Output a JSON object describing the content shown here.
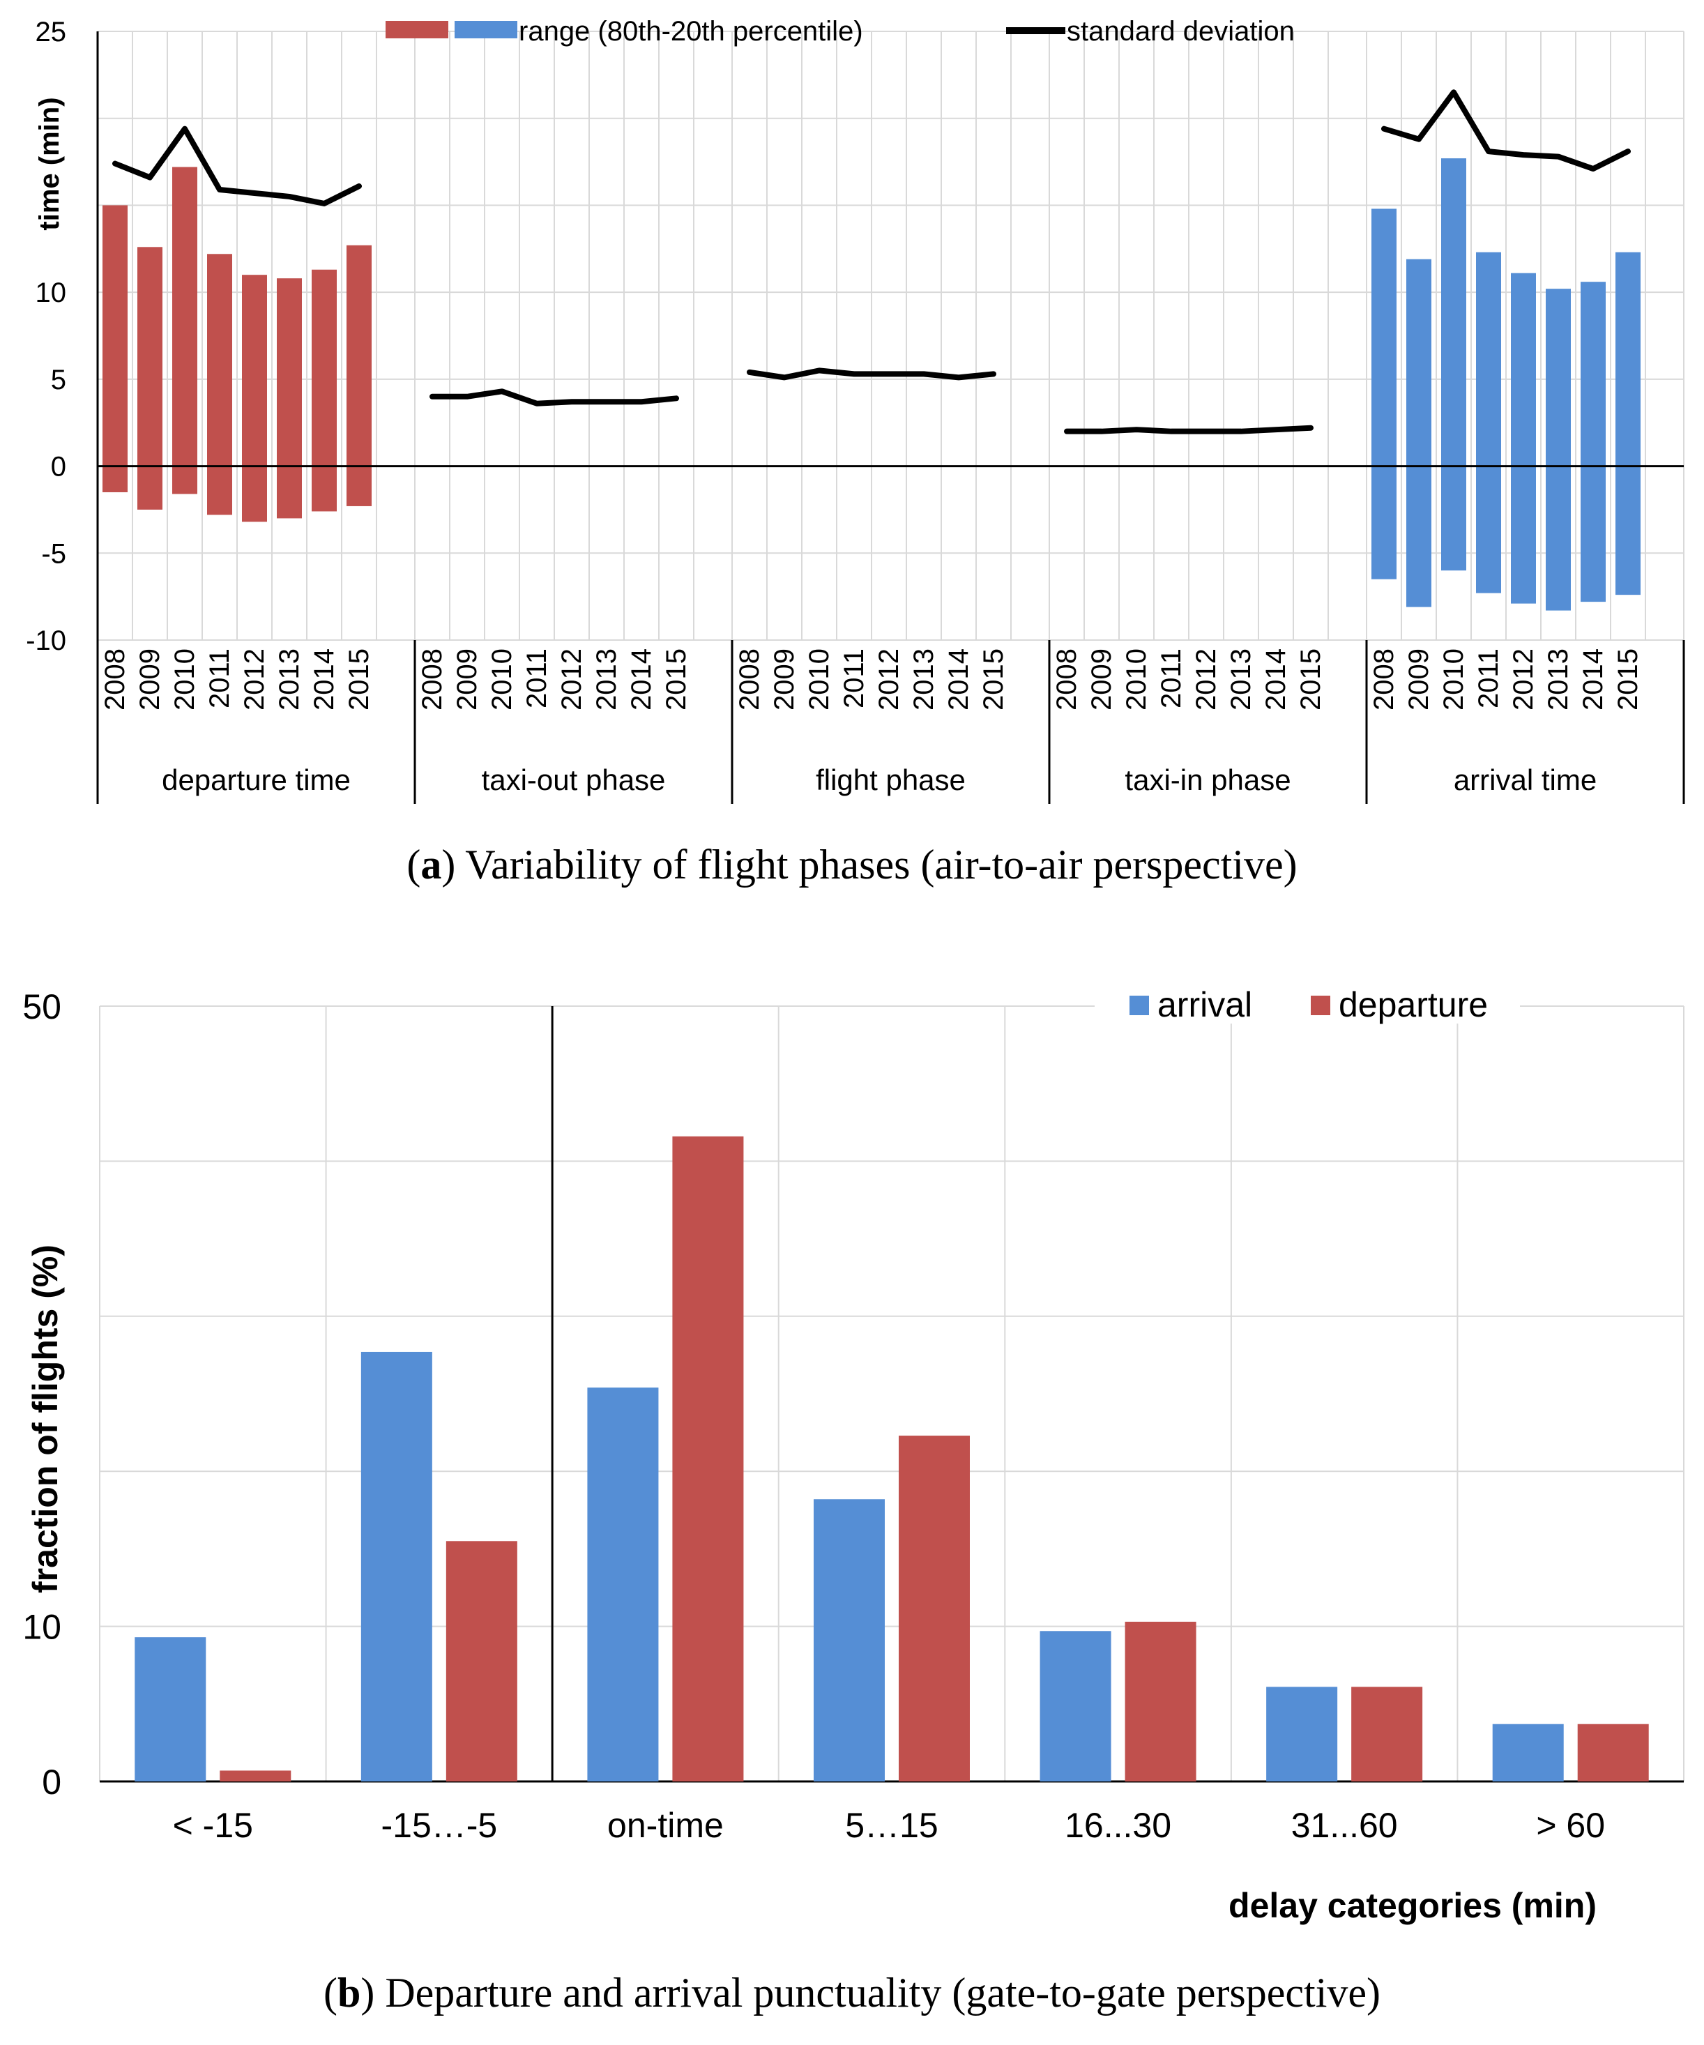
{
  "chart_data": [
    {
      "id": "a",
      "type": "floating-bar+line",
      "caption_letter": "a",
      "caption_text": "Variability of flight phases (air-to-air perspective)",
      "ylabel": "time (min)",
      "ylim": [
        -10,
        25
      ],
      "yticks": [
        "-10",
        "-5",
        "0",
        "5",
        "10",
        "25"
      ],
      "ytick_values": [
        -10,
        -5,
        0,
        5,
        10,
        25
      ],
      "years": [
        "2008",
        "2009",
        "2010",
        "2011",
        "2012",
        "2013",
        "2014",
        "2015"
      ],
      "groups": [
        "departure time",
        "taxi-out phase",
        "flight phase",
        "taxi-in phase",
        "arrival time"
      ],
      "legend": {
        "range": "range (80th-20th percentile)",
        "std": "standard deviation"
      },
      "colors": {
        "departure": "#C0504D",
        "arrival": "#558ED5",
        "line": "#000000",
        "grid": "#D9D9D9"
      },
      "range_departure": {
        "low": [
          -1.5,
          -2.5,
          -1.6,
          -2.8,
          -3.2,
          -3.0,
          -2.6,
          -2.3
        ],
        "high": [
          15.0,
          12.6,
          17.2,
          12.2,
          11.0,
          10.8,
          11.3,
          12.7
        ]
      },
      "range_arrival": {
        "low": [
          -6.5,
          -8.1,
          -6.0,
          -7.3,
          -7.9,
          -8.3,
          -7.8,
          -7.4
        ],
        "high": [
          14.8,
          11.9,
          17.7,
          12.3,
          11.1,
          10.2,
          10.6,
          12.3
        ]
      },
      "std": {
        "departure time": [
          17.4,
          16.6,
          19.4,
          15.9,
          15.7,
          15.5,
          15.1,
          16.1
        ],
        "taxi-out phase": [
          4.0,
          4.0,
          4.3,
          3.6,
          3.7,
          3.7,
          3.7,
          3.9
        ],
        "flight phase": [
          5.4,
          5.1,
          5.5,
          5.3,
          5.3,
          5.3,
          5.1,
          5.3
        ],
        "taxi-in phase": [
          2.0,
          2.0,
          2.1,
          2.0,
          2.0,
          2.0,
          2.1,
          2.2
        ],
        "arrival time": [
          19.4,
          18.8,
          21.5,
          18.1,
          17.9,
          17.8,
          17.1,
          18.1
        ]
      }
    },
    {
      "id": "b",
      "type": "bar",
      "caption_letter": "b",
      "caption_text": "Departure and arrival punctuality (gate-to-gate perspective)",
      "xlabel": "delay categories (min)",
      "ylabel": "fraction of flights (%)",
      "ylim": [
        0,
        50
      ],
      "yticks": [
        "0",
        "10",
        "50"
      ],
      "ytick_values": [
        0,
        10,
        50
      ],
      "categories": [
        "< -15",
        "-15…-5",
        "on-time",
        "5…15",
        "16...30",
        "31...60",
        "> 60"
      ],
      "series": [
        {
          "name": "arrival",
          "color": "#558ED5",
          "values": [
            9.3,
            27.7,
            25.4,
            18.2,
            9.7,
            6.1,
            3.7
          ]
        },
        {
          "name": "departure",
          "color": "#C0504D",
          "values": [
            0.7,
            15.5,
            41.6,
            22.3,
            10.3,
            6.1,
            3.7
          ]
        }
      ],
      "on_time_separator_after_index": 1
    }
  ]
}
